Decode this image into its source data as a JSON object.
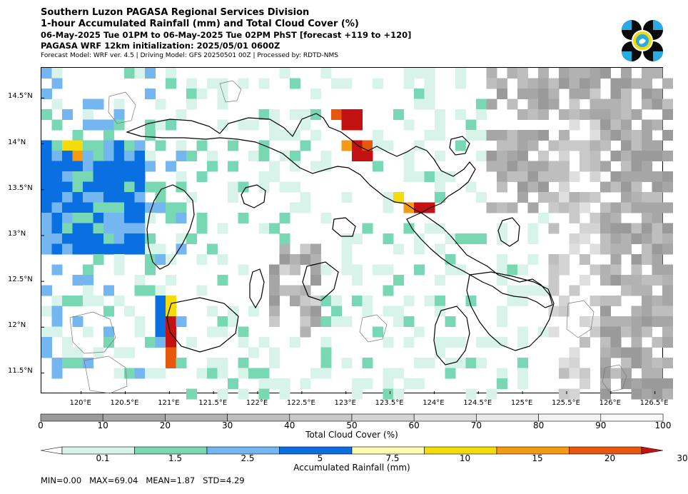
{
  "header": {
    "title": "Southern Luzon PAGASA Regional Services Division",
    "subtitle": "1-hour Accumulated Rainfall (mm) and Total Cloud Cover (%)",
    "valid_time": "06-May-2025 Tue 01PM to 06-May-2025 Tue 02PM PhST [forecast +119 to +120]",
    "init": "PAGASA WRF 12km initialization: 2025/05/01 0600Z",
    "model_info": "Forecast Model: WRF ver. 4.5 | Driving Model: GFS 20250501 00Z | Processed by: RDTD-NMS"
  },
  "logo": {
    "name": "pagasa-logo",
    "colors": [
      "#0a0a0a",
      "#29abe2",
      "#f5d90a"
    ]
  },
  "map": {
    "lat_labels": [
      "14.5°N",
      "14°N",
      "13.5°N",
      "13°N",
      "12.5°N",
      "12°N",
      "11.5°N"
    ],
    "lon_labels": [
      "120°E",
      "120.5°E",
      "121°E",
      "121.5°E",
      "122°E",
      "122.5°E",
      "123°E",
      "123.5°E",
      "124°E",
      "124.5°E",
      "125°E",
      "125.5°E",
      "126°E",
      "126.5°E"
    ],
    "lat_values": [
      14.5,
      14.0,
      13.5,
      13.0,
      12.5,
      12.0,
      11.5
    ],
    "lon_values": [
      120,
      120.5,
      121,
      121.5,
      122,
      122.5,
      123,
      123.5,
      124,
      124.5,
      125,
      125.5,
      126,
      126.5
    ]
  },
  "cloud_colorbar": {
    "title": "Total Cloud Cover (%)",
    "ticks": [
      "0",
      "10",
      "20",
      "30",
      "40",
      "50",
      "60",
      "70",
      "80",
      "90",
      "100"
    ],
    "colors": [
      "#9a9a9a",
      "#a6a6a6",
      "#b2b2b2",
      "#bebebe",
      "#c9c9c9",
      "#d4d4d4",
      "#dfdfdf",
      "#e9e9e9",
      "#f2f2f2",
      "#fafafa"
    ]
  },
  "rain_colorbar": {
    "title": "Accumulated Rainfall (mm)",
    "ticks": [
      "0.1",
      "1.5",
      "2.5",
      "5",
      "7.5",
      "10",
      "15",
      "20",
      "30"
    ],
    "colors": [
      "#d8f3ea",
      "#79d8b4",
      "#74b6f0",
      "#0a6fe0",
      "#fffcb0",
      "#f4dc0a",
      "#f49a14",
      "#e8580c",
      "#c41212"
    ]
  },
  "stats": "MIN=0.00   MAX=69.04   MEAN=1.87   STD=4.29"
}
